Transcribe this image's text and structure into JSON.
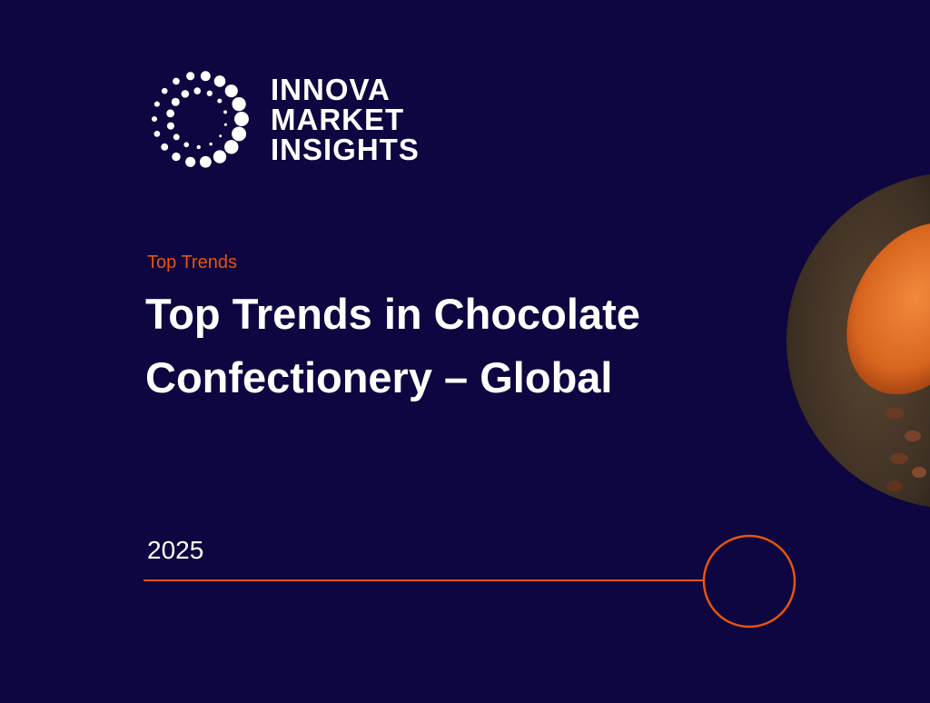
{
  "logo": {
    "lines": [
      "INNOVA",
      "MARKET",
      "INSIGHTS"
    ]
  },
  "eyebrow": "Top Trends",
  "title": {
    "lines": [
      "Top Trends in Chocolate",
      "Confectionery – Global"
    ]
  },
  "year": "2025"
}
